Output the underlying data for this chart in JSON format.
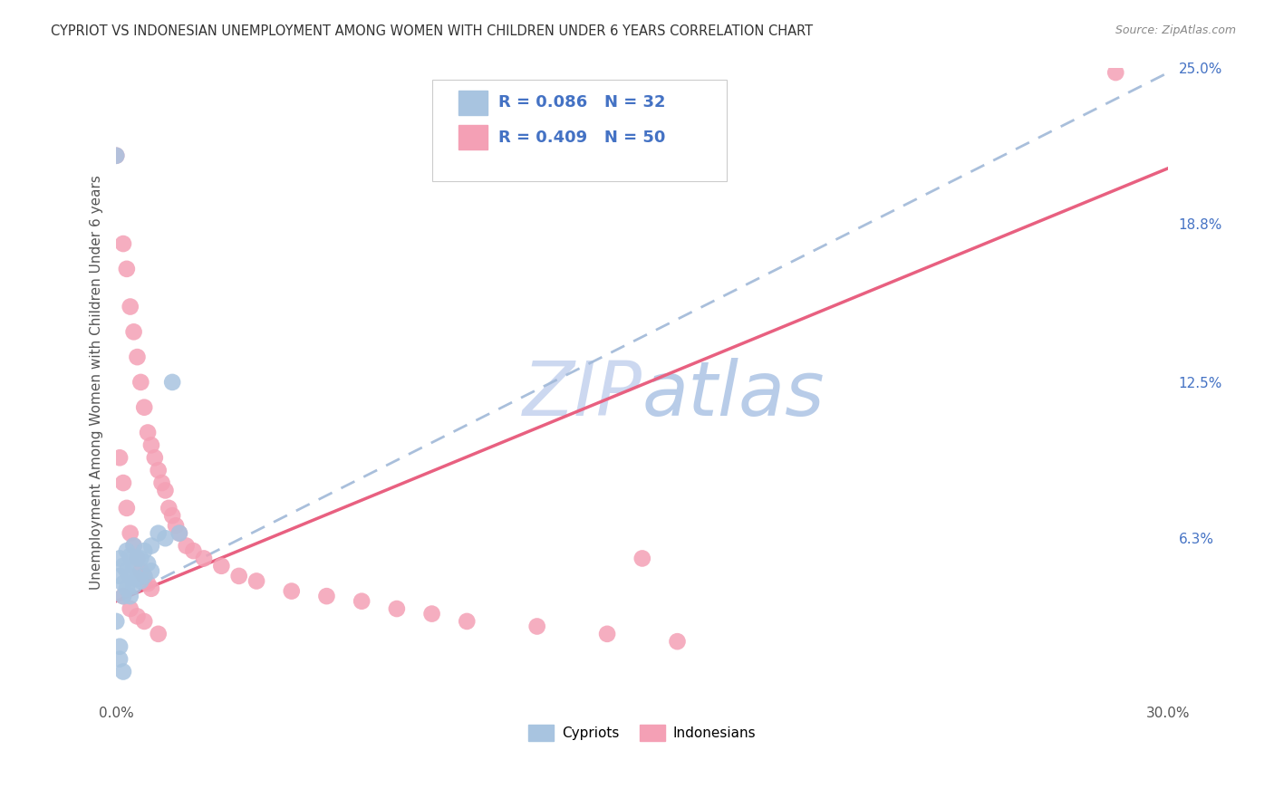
{
  "title": "CYPRIOT VS INDONESIAN UNEMPLOYMENT AMONG WOMEN WITH CHILDREN UNDER 6 YEARS CORRELATION CHART",
  "source": "Source: ZipAtlas.com",
  "ylabel": "Unemployment Among Women with Children Under 6 years",
  "xlim": [
    0.0,
    0.3
  ],
  "ylim": [
    0.0,
    0.25
  ],
  "xtick_positions": [
    0.0,
    0.05,
    0.1,
    0.15,
    0.2,
    0.25,
    0.3
  ],
  "xtick_labels": [
    "0.0%",
    "",
    "",
    "",
    "",
    "",
    "30.0%"
  ],
  "ytick_positions": [
    0.0,
    0.063,
    0.125,
    0.188,
    0.25
  ],
  "ytick_labels": [
    "",
    "6.3%",
    "12.5%",
    "18.8%",
    "25.0%"
  ],
  "cypriot_color": "#a8c4e0",
  "indonesian_color": "#f4a0b5",
  "trendline_cypriot_color": "#a0b8d8",
  "trendline_indonesian_color": "#e86080",
  "watermark_color": "#ccd8f0",
  "right_tick_color": "#4472c4",
  "background_color": "#ffffff",
  "grid_color": "#cccccc",
  "cypriot_x": [
    0.001,
    0.001,
    0.002,
    0.002,
    0.002,
    0.003,
    0.003,
    0.003,
    0.004,
    0.004,
    0.004,
    0.005,
    0.005,
    0.005,
    0.006,
    0.006,
    0.007,
    0.007,
    0.008,
    0.008,
    0.009,
    0.01,
    0.01,
    0.012,
    0.014,
    0.016,
    0.0,
    0.0,
    0.001,
    0.001,
    0.002,
    0.018
  ],
  "cypriot_y": [
    0.055,
    0.048,
    0.052,
    0.045,
    0.04,
    0.058,
    0.05,
    0.043,
    0.056,
    0.048,
    0.04,
    0.06,
    0.052,
    0.044,
    0.055,
    0.047,
    0.055,
    0.046,
    0.058,
    0.048,
    0.053,
    0.06,
    0.05,
    0.065,
    0.063,
    0.125,
    0.215,
    0.03,
    0.02,
    0.015,
    0.01,
    0.065
  ],
  "indonesian_x": [
    0.0,
    0.001,
    0.002,
    0.002,
    0.003,
    0.003,
    0.004,
    0.004,
    0.005,
    0.005,
    0.006,
    0.006,
    0.007,
    0.007,
    0.008,
    0.008,
    0.009,
    0.009,
    0.01,
    0.01,
    0.011,
    0.012,
    0.013,
    0.014,
    0.015,
    0.016,
    0.017,
    0.018,
    0.02,
    0.022,
    0.025,
    0.03,
    0.035,
    0.04,
    0.05,
    0.06,
    0.07,
    0.08,
    0.09,
    0.1,
    0.12,
    0.14,
    0.16,
    0.002,
    0.004,
    0.006,
    0.008,
    0.012,
    0.15,
    0.285
  ],
  "indonesian_y": [
    0.215,
    0.095,
    0.18,
    0.085,
    0.17,
    0.075,
    0.155,
    0.065,
    0.145,
    0.06,
    0.135,
    0.055,
    0.125,
    0.05,
    0.115,
    0.048,
    0.105,
    0.045,
    0.1,
    0.043,
    0.095,
    0.09,
    0.085,
    0.082,
    0.075,
    0.072,
    0.068,
    0.065,
    0.06,
    0.058,
    0.055,
    0.052,
    0.048,
    0.046,
    0.042,
    0.04,
    0.038,
    0.035,
    0.033,
    0.03,
    0.028,
    0.025,
    0.022,
    0.04,
    0.035,
    0.032,
    0.03,
    0.025,
    0.055,
    0.248
  ],
  "cyp_trend_x0": 0.0,
  "cyp_trend_y0": 0.038,
  "cyp_trend_x1": 0.3,
  "cyp_trend_y1": 0.248,
  "ind_trend_x0": 0.0,
  "ind_trend_y0": 0.038,
  "ind_trend_x1": 0.3,
  "ind_trend_y1": 0.21
}
